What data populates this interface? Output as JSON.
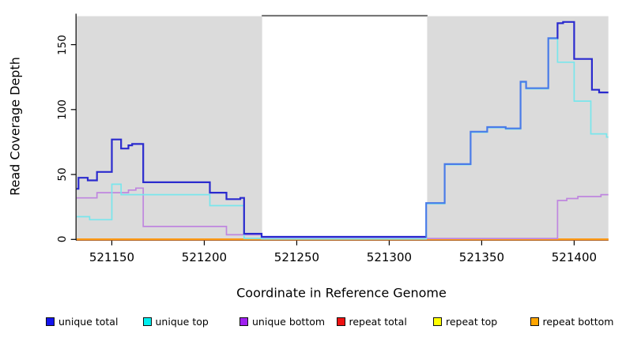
{
  "chart_data": {
    "type": "line",
    "subtype": "step",
    "title": "",
    "xlabel": "Coordinate in Reference Genome",
    "ylabel": "Read Coverage Depth",
    "xlim": [
      521131,
      521418.5
    ],
    "ylim": [
      0,
      172
    ],
    "xticks": [
      521150,
      521200,
      521250,
      521300,
      521350,
      521400
    ],
    "yticks": [
      0,
      50,
      100,
      150
    ],
    "grid": false,
    "legend_position": "bottom",
    "panel_background": "#ffffff",
    "background_regions": [
      {
        "label": "shaded-left",
        "x0": 521131,
        "x1": 521231.3,
        "fill": "#dbdbdb"
      },
      {
        "label": "white-gap",
        "x0": 521231.3,
        "x1": 521320.5,
        "fill": "#ffffff",
        "top_border": "#6e6e6e"
      },
      {
        "label": "shaded-right",
        "x0": 521320.5,
        "x1": 521418.5,
        "fill": "#dbdbdb"
      }
    ],
    "series": [
      {
        "name": "repeat total",
        "color": "#dd2222",
        "width": 2.6,
        "points": [
          [
            521131,
            0
          ]
        ]
      },
      {
        "name": "repeat top",
        "color": "#ffee22",
        "width": 2.0,
        "points": [
          [
            521131,
            0
          ]
        ]
      },
      {
        "name": "repeat bottom",
        "color": "#ff9f1a",
        "width": 2.0,
        "points": [
          [
            521131,
            0
          ]
        ]
      },
      {
        "name": "unique bottom",
        "color": "#bf86df",
        "width": 1.7,
        "points": [
          [
            521131,
            32
          ],
          [
            521142,
            36
          ],
          [
            521159,
            38
          ],
          [
            521163,
            39.5
          ],
          [
            521167,
            10
          ],
          [
            521212,
            3.6
          ],
          [
            521231,
            1.4
          ],
          [
            521320,
            0.7
          ],
          [
            521391,
            30
          ],
          [
            521396,
            31.5
          ],
          [
            521402,
            33
          ],
          [
            521414.5,
            34.5
          ]
        ]
      },
      {
        "name": "unique top",
        "color": "#79e6ec",
        "width": 1.7,
        "points": [
          [
            521131,
            17.5
          ],
          [
            521138,
            15.2
          ],
          [
            521150,
            42.5
          ],
          [
            521155,
            34.5
          ],
          [
            521203,
            26
          ],
          [
            521221.5,
            0.8
          ],
          [
            521231,
            0.4
          ],
          [
            521320,
            27.5
          ],
          [
            521330,
            57.5
          ],
          [
            521344,
            82.5
          ],
          [
            521353,
            86
          ],
          [
            521363,
            85
          ],
          [
            521371,
            121
          ],
          [
            521374,
            116
          ],
          [
            521386,
            154.5
          ],
          [
            521391,
            136.5
          ],
          [
            521400,
            106.5
          ],
          [
            521409,
            81.3
          ],
          [
            521417.5,
            78.8
          ]
        ]
      },
      {
        "name": "unique total",
        "color": "#2a2ace",
        "width": 2.2,
        "points": [
          [
            521131,
            39
          ],
          [
            521132,
            47.5
          ],
          [
            521137,
            45.5
          ],
          [
            521142,
            52
          ],
          [
            521150,
            77
          ],
          [
            521155,
            70
          ],
          [
            521159,
            72.5
          ],
          [
            521161,
            73.5
          ],
          [
            521167,
            44
          ],
          [
            521203,
            36
          ],
          [
            521212,
            31
          ],
          [
            521219.5,
            32
          ],
          [
            521221.5,
            4.4
          ],
          [
            521231,
            2
          ],
          [
            521320,
            28
          ],
          [
            521330,
            58
          ],
          [
            521344,
            83
          ],
          [
            521353,
            86.5
          ],
          [
            521363,
            85.5
          ],
          [
            521371,
            121.5
          ],
          [
            521374,
            116.5
          ],
          [
            521386,
            155
          ],
          [
            521391,
            166.5
          ],
          [
            521394,
            167.5
          ],
          [
            521400,
            139
          ],
          [
            521409.6,
            115.3
          ],
          [
            521413.5,
            113.2
          ]
        ],
        "segments": [
          {
            "from": 521131,
            "to": 521319.9,
            "color": "#2a2ace"
          },
          {
            "from": 521319.9,
            "to": 521390.9,
            "color": "#4a7be8",
            "note": "appears medium blue where unique total coincides with unique top"
          },
          {
            "from": 521390.9,
            "to": 521418.5,
            "color": "#2a2ace"
          }
        ]
      }
    ],
    "legend": [
      {
        "label": "unique total",
        "color": "#1414ee"
      },
      {
        "label": "unique top",
        "color": "#00eeee"
      },
      {
        "label": "unique bottom",
        "color": "#a020f0"
      },
      {
        "label": "repeat total",
        "color": "#ee1111"
      },
      {
        "label": "repeat top",
        "color": "#ffff00"
      },
      {
        "label": "repeat bottom",
        "color": "#ffa500"
      }
    ],
    "axis_color": "#000000"
  }
}
